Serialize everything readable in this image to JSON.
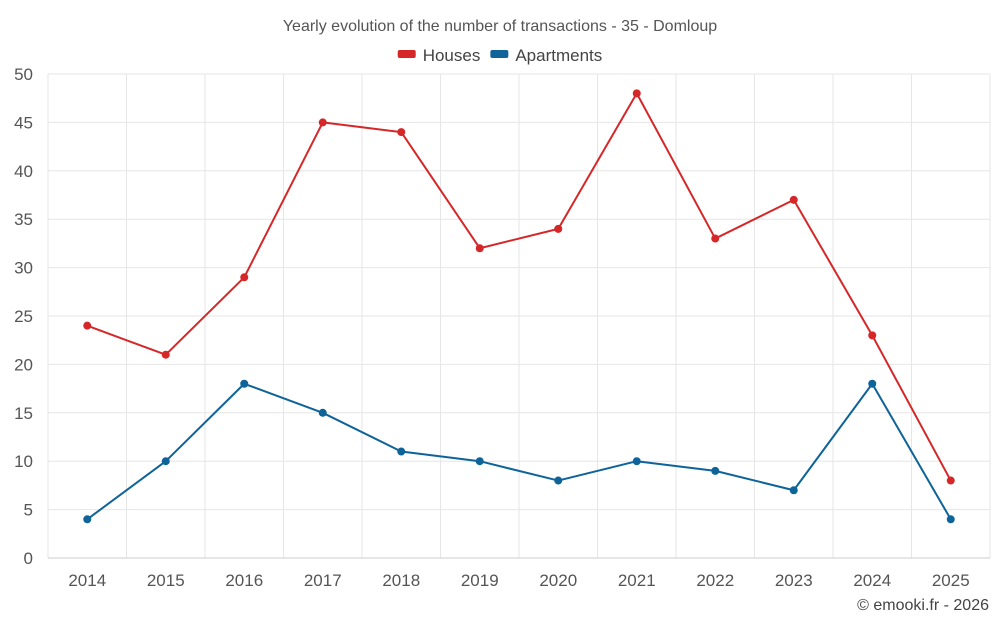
{
  "chart_data": {
    "type": "line",
    "title": "Yearly evolution of the number of transactions - 35 - Domloup",
    "xlabel": "",
    "ylabel": "",
    "categories": [
      "2014",
      "2015",
      "2016",
      "2017",
      "2018",
      "2019",
      "2020",
      "2021",
      "2022",
      "2023",
      "2024",
      "2025"
    ],
    "ylim": [
      0,
      50
    ],
    "yticks": [
      0,
      5,
      10,
      15,
      20,
      25,
      30,
      35,
      40,
      45,
      50
    ],
    "grid": true,
    "legend_position": "top-center",
    "series": [
      {
        "name": "Houses",
        "color": "#d62728",
        "values": [
          24,
          21,
          29,
          45,
          44,
          32,
          34,
          48,
          33,
          37,
          23,
          8
        ]
      },
      {
        "name": "Apartments",
        "color": "#0e6399",
        "values": [
          4,
          10,
          18,
          15,
          11,
          10,
          8,
          10,
          9,
          7,
          18,
          4
        ]
      }
    ]
  },
  "credit": "© emooki.fr - 2026"
}
